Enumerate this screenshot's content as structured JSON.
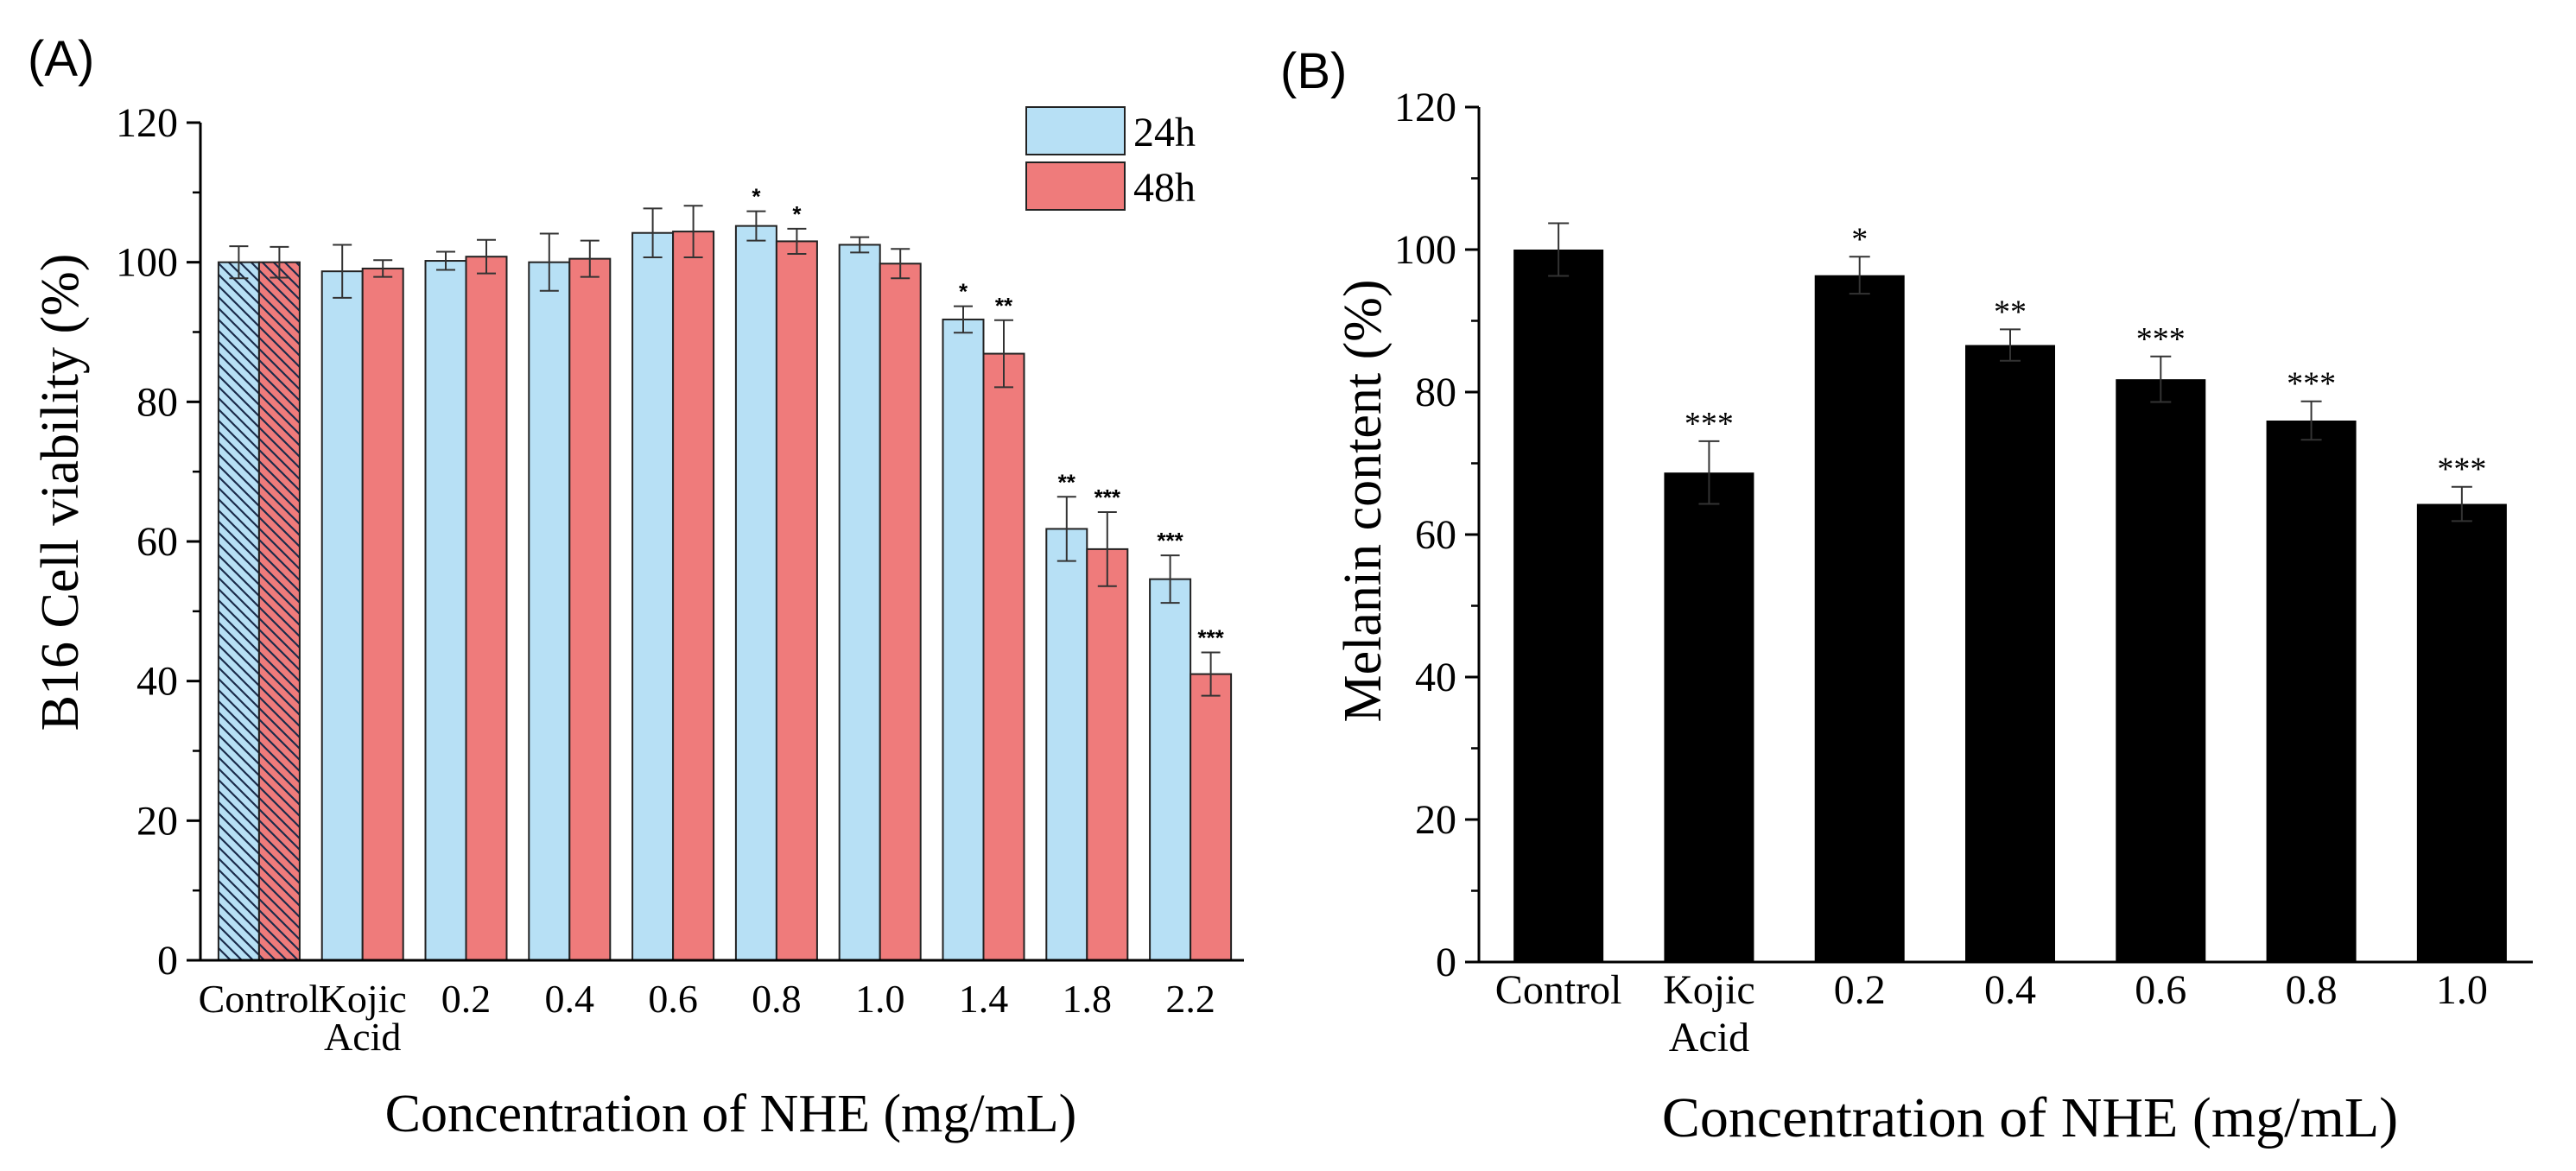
{
  "chart_data": [
    {
      "id": "A",
      "type": "bar",
      "panel_label": "(A)",
      "ylabel": "B16 Cell viability (%)",
      "xlabel": "Concentration of NHE (mg/mL)",
      "ylim": [
        0,
        120
      ],
      "yticks": [
        0,
        20,
        40,
        60,
        80,
        100,
        120
      ],
      "ytick_labels": [
        "0",
        "20",
        "40",
        "60",
        "80",
        "100",
        "120"
      ],
      "categories": [
        "Control",
        "Kojic Acid",
        "0.2",
        "0.4",
        "0.6",
        "0.8",
        "1.0",
        "1.4",
        "1.8",
        "2.2"
      ],
      "category_lines": [
        [
          "Control"
        ],
        [
          "Kojic",
          "Acid"
        ],
        [
          "0.2"
        ],
        [
          "0.4"
        ],
        [
          "0.6"
        ],
        [
          "0.8"
        ],
        [
          "1.0"
        ],
        [
          "1.4"
        ],
        [
          "1.8"
        ],
        [
          "2.2"
        ]
      ],
      "legend_position": "top-right",
      "control_hatched": true,
      "series": [
        {
          "name": "24h",
          "color": "#b7e0f5",
          "values": [
            100,
            98.7,
            100.2,
            100,
            104.2,
            105.2,
            102.5,
            91.8,
            61.8,
            54.6
          ],
          "errors": [
            2.3,
            3.8,
            1.3,
            4.1,
            3.5,
            2.1,
            1.1,
            1.9,
            4.6,
            3.4
          ],
          "significance": [
            "",
            "",
            "",
            "",
            "",
            "*",
            "",
            "*",
            "**",
            "***"
          ]
        },
        {
          "name": "48h",
          "color": "#ef7b7b",
          "values": [
            100,
            99.1,
            100.8,
            100.5,
            104.4,
            103,
            99.8,
            86.9,
            58.9,
            41
          ],
          "errors": [
            2.2,
            1.2,
            2.4,
            2.6,
            3.7,
            1.8,
            2.1,
            4.8,
            5.3,
            3.1
          ],
          "significance": [
            "",
            "",
            "",
            "",
            "",
            "*",
            "",
            "**",
            "***",
            "***"
          ]
        }
      ]
    },
    {
      "id": "B",
      "type": "bar",
      "panel_label": "(B)",
      "ylabel": "Melanin content (%)",
      "xlabel": "Concentration of NHE (mg/mL)",
      "ylim": [
        0,
        120
      ],
      "yticks": [
        0,
        20,
        40,
        60,
        80,
        100,
        120
      ],
      "ytick_labels": [
        "0",
        "20",
        "40",
        "60",
        "80",
        "100",
        "120"
      ],
      "categories": [
        "Control",
        "Kojic Acid",
        "0.2",
        "0.4",
        "0.6",
        "0.8",
        "1.0"
      ],
      "category_lines": [
        [
          "Control"
        ],
        [
          "Kojic",
          "Acid"
        ],
        [
          "0.2"
        ],
        [
          "0.4"
        ],
        [
          "0.6"
        ],
        [
          "0.8"
        ],
        [
          "1.0"
        ]
      ],
      "bar_color": "#000000",
      "values": [
        100,
        68.7,
        96.4,
        86.6,
        81.8,
        76,
        64.3
      ],
      "errors": [
        3.7,
        4.4,
        2.6,
        2.2,
        3.2,
        2.7,
        2.4
      ],
      "significance": [
        "",
        "***",
        "*",
        "**",
        "***",
        "***",
        "***"
      ]
    }
  ]
}
